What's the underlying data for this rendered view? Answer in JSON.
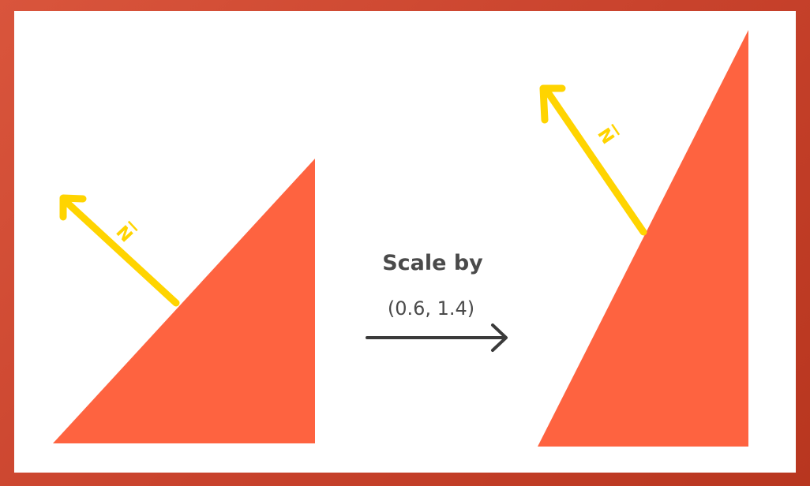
{
  "transform": {
    "caption": "Scale by",
    "factor": "(0.6, 1.4)"
  },
  "normal_symbol": "N",
  "colors": {
    "triangle": "#fe6340",
    "normal_vector": "#ffd400",
    "arrow": "#3a3a3a",
    "text": "#4a4a4a",
    "background": "#ffffff",
    "frame": "#c8432e"
  }
}
